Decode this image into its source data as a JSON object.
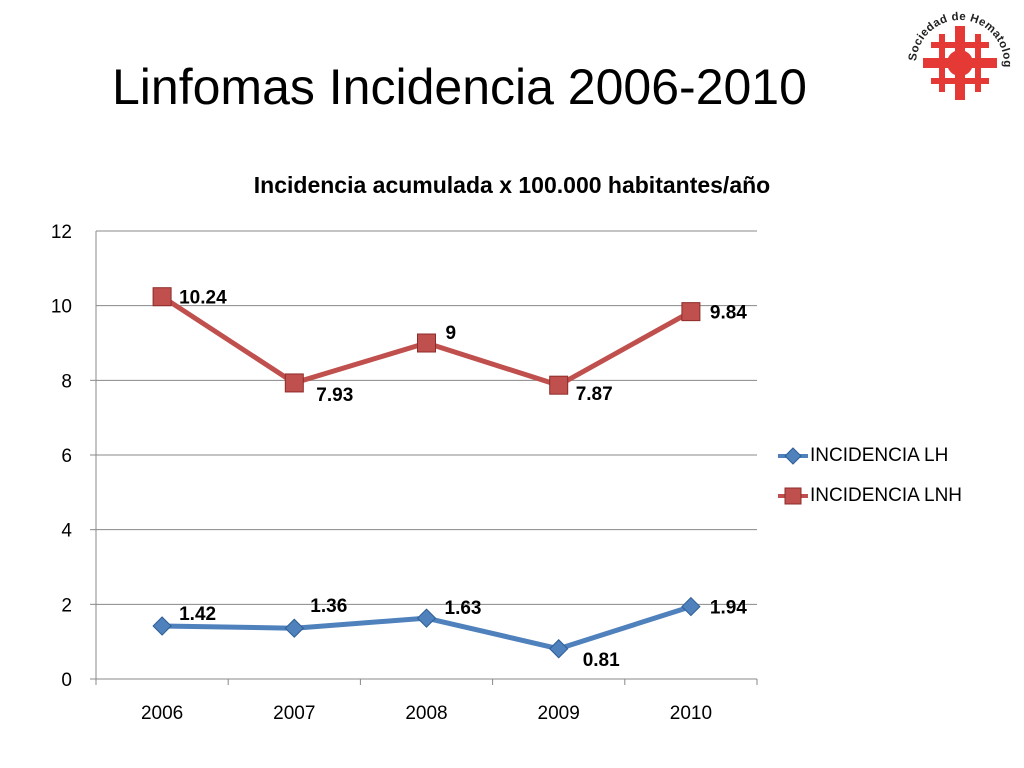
{
  "slide": {
    "title": "Linfomas Incidencia 2006-2010",
    "logo_text": "Sociedad de Hematología del Uruguay"
  },
  "colors": {
    "lh": "#4F81BD",
    "lnh": "#C0504D",
    "logo_red": "#E53935",
    "grid": "#888888"
  },
  "chart_data": {
    "type": "line",
    "title": "Incidencia acumulada x 100.000 habitantes/año",
    "xlabel": "",
    "ylabel": "",
    "categories": [
      "2006",
      "2007",
      "2008",
      "2009",
      "2010"
    ],
    "ylim": [
      0,
      12
    ],
    "yticks": [
      0,
      2,
      4,
      6,
      8,
      10,
      12
    ],
    "grid": true,
    "legend_position": "right",
    "series": [
      {
        "name": "INCIDENCIA LH",
        "marker": "diamond",
        "values": [
          1.42,
          1.36,
          1.63,
          0.81,
          1.94
        ],
        "labels": [
          "1.42",
          "1.36",
          "1.63",
          "0.81",
          "1.94"
        ]
      },
      {
        "name": "INCIDENCIA LNH",
        "marker": "square",
        "values": [
          10.24,
          7.93,
          9,
          7.87,
          9.84
        ],
        "labels": [
          "10.24",
          "7.93",
          "9",
          "7.87",
          "9.84"
        ]
      }
    ]
  }
}
